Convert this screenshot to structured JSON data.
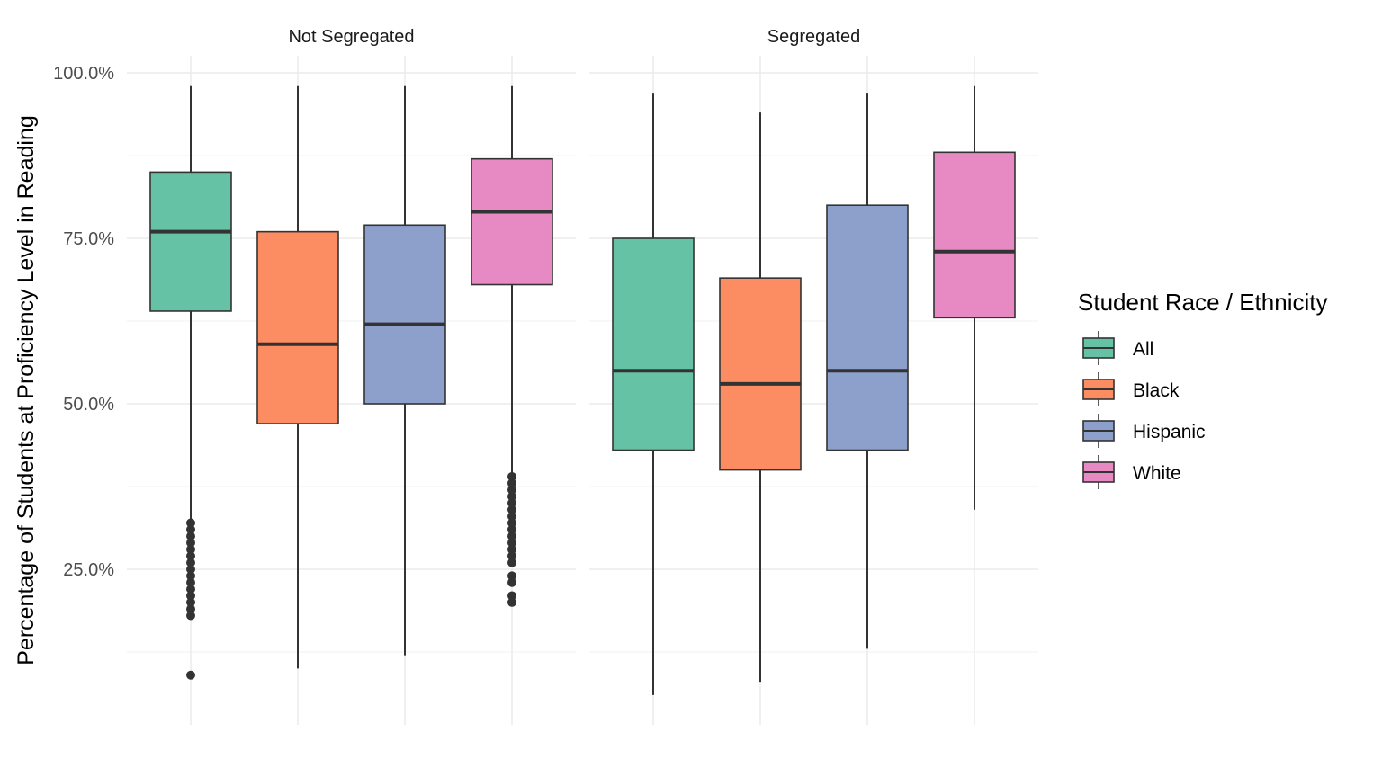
{
  "chart_data": {
    "type": "boxplot",
    "ylabel": "Percentage of Students at Proficiency Level in Reading",
    "xlabel": "",
    "ylim": [
      0.04,
      1.04
    ],
    "y_ticks": [
      {
        "value": 0.25,
        "label": "25.0%"
      },
      {
        "value": 0.5,
        "label": "50.0%"
      },
      {
        "value": 0.75,
        "label": "75.0%"
      },
      {
        "value": 1.0,
        "label": "100.0%"
      }
    ],
    "grid": true,
    "legend": {
      "title": "Student Race / Ethnicity",
      "position": "right",
      "entries": [
        {
          "label": "All",
          "color": "#66c2a5"
        },
        {
          "label": "Black",
          "color": "#fc8d62"
        },
        {
          "label": "Hispanic",
          "color": "#8da0cb"
        },
        {
          "label": "White",
          "color": "#e78ac3"
        }
      ]
    },
    "facets": [
      {
        "title": "Not Segregated",
        "boxes": [
          {
            "group": "All",
            "whisker_low": 0.18,
            "q1": 0.64,
            "median": 0.76,
            "q3": 0.85,
            "whisker_high": 0.98,
            "outliers": [
              0.09,
              0.18,
              0.19,
              0.2,
              0.21,
              0.22,
              0.23,
              0.24,
              0.25,
              0.26,
              0.27,
              0.28,
              0.29,
              0.3,
              0.31,
              0.32
            ]
          },
          {
            "group": "Black",
            "whisker_low": 0.1,
            "q1": 0.47,
            "median": 0.59,
            "q3": 0.76,
            "whisker_high": 0.98,
            "outliers": []
          },
          {
            "group": "Hispanic",
            "whisker_low": 0.12,
            "q1": 0.5,
            "median": 0.62,
            "q3": 0.77,
            "whisker_high": 0.98,
            "outliers": []
          },
          {
            "group": "White",
            "whisker_low": 0.39,
            "q1": 0.68,
            "median": 0.79,
            "q3": 0.87,
            "whisker_high": 0.98,
            "outliers": [
              0.2,
              0.21,
              0.23,
              0.24,
              0.26,
              0.27,
              0.28,
              0.29,
              0.3,
              0.31,
              0.32,
              0.33,
              0.34,
              0.35,
              0.36,
              0.37,
              0.38,
              0.39
            ]
          }
        ]
      },
      {
        "title": "Segregated",
        "boxes": [
          {
            "group": "All",
            "whisker_low": 0.06,
            "q1": 0.43,
            "median": 0.55,
            "q3": 0.75,
            "whisker_high": 0.97,
            "outliers": []
          },
          {
            "group": "Black",
            "whisker_low": 0.08,
            "q1": 0.4,
            "median": 0.53,
            "q3": 0.69,
            "whisker_high": 0.94,
            "outliers": []
          },
          {
            "group": "Hispanic",
            "whisker_low": 0.13,
            "q1": 0.43,
            "median": 0.55,
            "q3": 0.8,
            "whisker_high": 0.97,
            "outliers": []
          },
          {
            "group": "White",
            "whisker_low": 0.34,
            "q1": 0.63,
            "median": 0.73,
            "q3": 0.88,
            "whisker_high": 0.98,
            "outliers": []
          }
        ]
      }
    ]
  }
}
